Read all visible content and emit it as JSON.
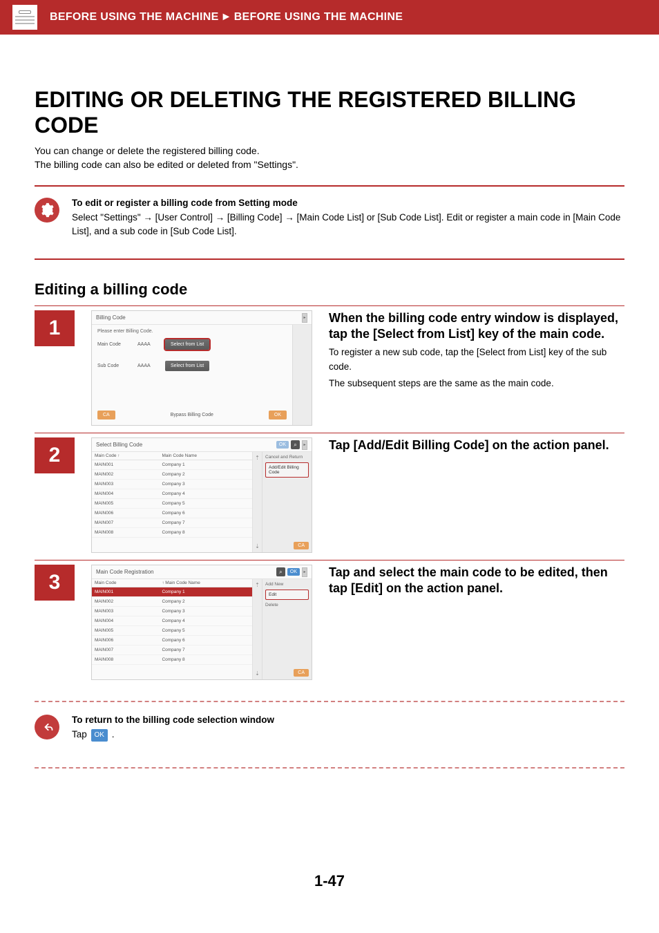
{
  "colors": {
    "brand": "#b62b2b",
    "accent_orange": "#e8a05a",
    "accent_blue": "#4a8dcf"
  },
  "header": {
    "breadcrumb_left": "BEFORE USING THE MACHINE",
    "breadcrumb_arrow": "►",
    "breadcrumb_right": "BEFORE USING THE MACHINE"
  },
  "title": "EDITING OR DELETING THE REGISTERED BILLING CODE",
  "lead": {
    "p1": "You can change or delete the registered billing code.",
    "p2": "The billing code can also be edited or deleted from \"Settings\"."
  },
  "note1": {
    "bold": "To edit or register a billing code from Setting mode",
    "body": "Select \"Settings\" → [User Control] → [Billing Code] → [Main Code List] or [Sub Code List]. Edit or register a main code in [Main Code List], and a sub code in [Sub Code List]."
  },
  "subhead": "Editing a billing code",
  "step1": {
    "num": "1",
    "panel": {
      "title": "Billing Code",
      "subtitle": "Please enter Billing Code.",
      "main_code_label": "Main Code",
      "main_code_value": "AAAA",
      "sub_code_label": "Sub Code",
      "sub_code_value": "AAAA",
      "select_btn": "Select from List",
      "ca": "CA",
      "bypass": "Bypass Billing Code",
      "ok": "OK"
    },
    "heading": "When the billing code entry window is displayed, tap the [Select from List] key of the main code.",
    "p1": "To register a new sub code, tap the [Select from List] key of the sub code.",
    "p2": "The subsequent steps are the same as the main code."
  },
  "step2": {
    "num": "2",
    "panel": {
      "title": "Select Billing Code",
      "ok": "OK",
      "col_code": "Main Code",
      "col_name": "Main Code Name",
      "sort": "↑",
      "action_title": "Cancel and Return",
      "action_item": "Add/Edit Billing Code",
      "ca": "CA",
      "rows": [
        {
          "code": "MAIN001",
          "name": "Company 1"
        },
        {
          "code": "MAIN002",
          "name": "Company 2"
        },
        {
          "code": "MAIN003",
          "name": "Company 3"
        },
        {
          "code": "MAIN004",
          "name": "Company 4"
        },
        {
          "code": "MAIN005",
          "name": "Company 5"
        },
        {
          "code": "MAIN006",
          "name": "Company 6"
        },
        {
          "code": "MAIN007",
          "name": "Company 7"
        },
        {
          "code": "MAIN008",
          "name": "Company 8"
        }
      ]
    },
    "heading": "Tap [Add/Edit Billing Code] on the action panel."
  },
  "step3": {
    "num": "3",
    "panel": {
      "title": "Main Code Registration",
      "ok": "OK",
      "col_code": "Main Code",
      "col_name": "Main Code Name",
      "sort": "↑",
      "action_title": "Add New",
      "action_edit": "Edit",
      "action_delete": "Delete",
      "ca": "CA",
      "rows": [
        {
          "code": "MAIN001",
          "name": "Company 1",
          "selected": true
        },
        {
          "code": "MAIN002",
          "name": "Company 2"
        },
        {
          "code": "MAIN003",
          "name": "Company 3"
        },
        {
          "code": "MAIN004",
          "name": "Company 4"
        },
        {
          "code": "MAIN005",
          "name": "Company 5"
        },
        {
          "code": "MAIN006",
          "name": "Company 6"
        },
        {
          "code": "MAIN007",
          "name": "Company 7"
        },
        {
          "code": "MAIN008",
          "name": "Company 8"
        }
      ]
    },
    "heading": "Tap and select the main code to be edited, then tap [Edit] on the action panel."
  },
  "note2": {
    "bold": "To return to the billing code selection window",
    "body_prefix": "Tap ",
    "ok": "OK",
    "body_suffix": " ."
  },
  "page_number": "1-47"
}
